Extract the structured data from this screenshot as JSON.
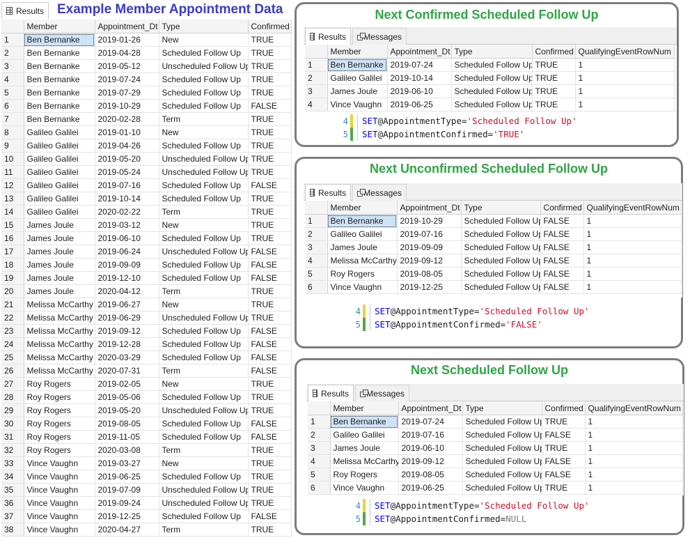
{
  "left": {
    "tab_results": "Results",
    "title": "Example Member Appointment Data",
    "columns": [
      "Member",
      "Appointment_Dt",
      "Type",
      "Confirmed"
    ],
    "rows": [
      [
        "1",
        "Ben Bernanke",
        "2019-01-26",
        "New",
        "TRUE"
      ],
      [
        "2",
        "Ben Bernanke",
        "2019-04-28",
        "Scheduled Follow Up",
        "TRUE"
      ],
      [
        "3",
        "Ben Bernanke",
        "2019-05-12",
        "Unscheduled Follow Up",
        "TRUE"
      ],
      [
        "4",
        "Ben Bernanke",
        "2019-07-24",
        "Scheduled Follow Up",
        "TRUE"
      ],
      [
        "5",
        "Ben Bernanke",
        "2019-07-29",
        "Scheduled Follow Up",
        "TRUE"
      ],
      [
        "6",
        "Ben Bernanke",
        "2019-10-29",
        "Scheduled Follow Up",
        "FALSE"
      ],
      [
        "7",
        "Ben Bernanke",
        "2020-02-28",
        "Term",
        "TRUE"
      ],
      [
        "8",
        "Galileo Galilei",
        "2019-01-10",
        "New",
        "TRUE"
      ],
      [
        "9",
        "Galileo Galilei",
        "2019-04-26",
        "Scheduled Follow Up",
        "TRUE"
      ],
      [
        "10",
        "Galileo Galilei",
        "2019-05-20",
        "Unscheduled Follow Up",
        "TRUE"
      ],
      [
        "11",
        "Galileo Galilei",
        "2019-05-24",
        "Unscheduled Follow Up",
        "TRUE"
      ],
      [
        "12",
        "Galileo Galilei",
        "2019-07-16",
        "Scheduled Follow Up",
        "FALSE"
      ],
      [
        "13",
        "Galileo Galilei",
        "2019-10-14",
        "Scheduled Follow Up",
        "TRUE"
      ],
      [
        "14",
        "Galileo Galilei",
        "2020-02-22",
        "Term",
        "TRUE"
      ],
      [
        "15",
        "James Joule",
        "2019-03-12",
        "New",
        "TRUE"
      ],
      [
        "16",
        "James Joule",
        "2019-06-10",
        "Scheduled Follow Up",
        "TRUE"
      ],
      [
        "17",
        "James Joule",
        "2019-06-24",
        "Unscheduled Follow Up",
        "FALSE"
      ],
      [
        "18",
        "James Joule",
        "2019-09-09",
        "Scheduled Follow Up",
        "FALSE"
      ],
      [
        "19",
        "James Joule",
        "2019-12-10",
        "Scheduled Follow Up",
        "FALSE"
      ],
      [
        "20",
        "James Joule",
        "2020-04-12",
        "Term",
        "TRUE"
      ],
      [
        "21",
        "Melissa McCarthy",
        "2019-06-27",
        "New",
        "TRUE"
      ],
      [
        "22",
        "Melissa McCarthy",
        "2019-06-29",
        "Unscheduled Follow Up",
        "TRUE"
      ],
      [
        "23",
        "Melissa McCarthy",
        "2019-09-12",
        "Scheduled Follow Up",
        "FALSE"
      ],
      [
        "24",
        "Melissa McCarthy",
        "2019-12-28",
        "Scheduled Follow Up",
        "FALSE"
      ],
      [
        "25",
        "Melissa McCarthy",
        "2020-03-29",
        "Scheduled Follow Up",
        "FALSE"
      ],
      [
        "26",
        "Melissa McCarthy",
        "2020-07-31",
        "Term",
        "FALSE"
      ],
      [
        "27",
        "Roy Rogers",
        "2019-02-05",
        "New",
        "TRUE"
      ],
      [
        "28",
        "Roy Rogers",
        "2019-05-06",
        "Scheduled Follow Up",
        "TRUE"
      ],
      [
        "29",
        "Roy Rogers",
        "2019-05-20",
        "Unscheduled Follow Up",
        "TRUE"
      ],
      [
        "30",
        "Roy Rogers",
        "2019-08-05",
        "Scheduled Follow Up",
        "FALSE"
      ],
      [
        "31",
        "Roy Rogers",
        "2019-11-05",
        "Scheduled Follow Up",
        "FALSE"
      ],
      [
        "32",
        "Roy Rogers",
        "2020-03-08",
        "Term",
        "TRUE"
      ],
      [
        "33",
        "Vince Vaughn",
        "2019-03-27",
        "New",
        "TRUE"
      ],
      [
        "34",
        "Vince Vaughn",
        "2019-06-25",
        "Scheduled Follow Up",
        "TRUE"
      ],
      [
        "35",
        "Vince Vaughn",
        "2019-07-09",
        "Unscheduled Follow Up",
        "TRUE"
      ],
      [
        "36",
        "Vince Vaughn",
        "2019-09-24",
        "Unscheduled Follow Up",
        "TRUE"
      ],
      [
        "37",
        "Vince Vaughn",
        "2019-12-25",
        "Scheduled Follow Up",
        "FALSE"
      ],
      [
        "38",
        "Vince Vaughn",
        "2020-04-27",
        "Term",
        "TRUE"
      ]
    ]
  },
  "panels": [
    {
      "title": "Next Confirmed Scheduled Follow Up",
      "tab_results": "Results",
      "tab_messages": "Messages",
      "columns": [
        "Member",
        "Appointment_Dt",
        "Type",
        "Confirmed",
        "QualifyingEventRowNum"
      ],
      "rows": [
        [
          "1",
          "Ben Bernanke",
          "2019-07-24",
          "Scheduled Follow Up",
          "TRUE",
          "1"
        ],
        [
          "2",
          "Galileo Galilei",
          "2019-10-14",
          "Scheduled Follow Up",
          "TRUE",
          "1"
        ],
        [
          "3",
          "James Joule",
          "2019-06-10",
          "Scheduled Follow Up",
          "TRUE",
          "1"
        ],
        [
          "4",
          "Vince Vaughn",
          "2019-06-25",
          "Scheduled Follow Up",
          "TRUE",
          "1"
        ]
      ],
      "code": [
        {
          "ln": "4",
          "kw": "SET",
          "var": " @AppointmentType=",
          "val": "'Scheduled Follow Up'",
          "val_type": "str"
        },
        {
          "ln": "5",
          "kw": "SET",
          "var": " @AppointmentConfirmed=",
          "val": "'TRUE'",
          "val_type": "str"
        }
      ]
    },
    {
      "title": "Next Unconfirmed Scheduled Follow Up",
      "tab_results": "Results",
      "tab_messages": "Messages",
      "columns": [
        "Member",
        "Appointment_Dt",
        "Type",
        "Confirmed",
        "QualifyingEventRowNum"
      ],
      "rows": [
        [
          "1",
          "Ben Bernanke",
          "2019-10-29",
          "Scheduled Follow Up",
          "FALSE",
          "1"
        ],
        [
          "2",
          "Galileo Galilei",
          "2019-07-16",
          "Scheduled Follow Up",
          "FALSE",
          "1"
        ],
        [
          "3",
          "James Joule",
          "2019-09-09",
          "Scheduled Follow Up",
          "FALSE",
          "1"
        ],
        [
          "4",
          "Melissa McCarthy",
          "2019-09-12",
          "Scheduled Follow Up",
          "FALSE",
          "1"
        ],
        [
          "5",
          "Roy Rogers",
          "2019-08-05",
          "Scheduled Follow Up",
          "FALSE",
          "1"
        ],
        [
          "6",
          "Vince Vaughn",
          "2019-12-25",
          "Scheduled Follow Up",
          "FALSE",
          "1"
        ]
      ],
      "code": [
        {
          "ln": "4",
          "kw": "SET",
          "var": " @AppointmentType=",
          "val": "'Scheduled Follow Up'",
          "val_type": "str"
        },
        {
          "ln": "5",
          "kw": "SET",
          "var": " @AppointmentConfirmed=",
          "val": "'FALSE'",
          "val_type": "str"
        }
      ]
    },
    {
      "title": "Next Scheduled Follow Up",
      "tab_results": "Results",
      "tab_messages": "Messages",
      "columns": [
        "Member",
        "Appointment_Dt",
        "Type",
        "Confirmed",
        "QualifyingEventRowNum"
      ],
      "rows": [
        [
          "1",
          "Ben Bernanke",
          "2019-07-24",
          "Scheduled Follow Up",
          "TRUE",
          "1"
        ],
        [
          "2",
          "Galileo Galilei",
          "2019-07-16",
          "Scheduled Follow Up",
          "FALSE",
          "1"
        ],
        [
          "3",
          "James Joule",
          "2019-06-10",
          "Scheduled Follow Up",
          "TRUE",
          "1"
        ],
        [
          "4",
          "Melissa McCarthy",
          "2019-09-12",
          "Scheduled Follow Up",
          "FALSE",
          "1"
        ],
        [
          "5",
          "Roy Rogers",
          "2019-08-05",
          "Scheduled Follow Up",
          "FALSE",
          "1"
        ],
        [
          "6",
          "Vince Vaughn",
          "2019-06-25",
          "Scheduled Follow Up",
          "TRUE",
          "1"
        ]
      ],
      "code": [
        {
          "ln": "4",
          "kw": "SET",
          "var": " @AppointmentType=",
          "val": "'Scheduled Follow Up'",
          "val_type": "str"
        },
        {
          "ln": "5",
          "kw": "SET",
          "var": " @AppointmentConfirmed=",
          "val": "NULL",
          "val_type": "null"
        }
      ]
    }
  ],
  "colors": {
    "left_title": "#3b3bc4",
    "panel_title": "#2fa545",
    "selected_cell": "#cfe3f7",
    "sql_keyword": "#0000ff",
    "sql_string": "#c8102e",
    "sql_null": "#808080"
  },
  "icons": {
    "results": "grid-icon",
    "messages": "messages-icon"
  }
}
